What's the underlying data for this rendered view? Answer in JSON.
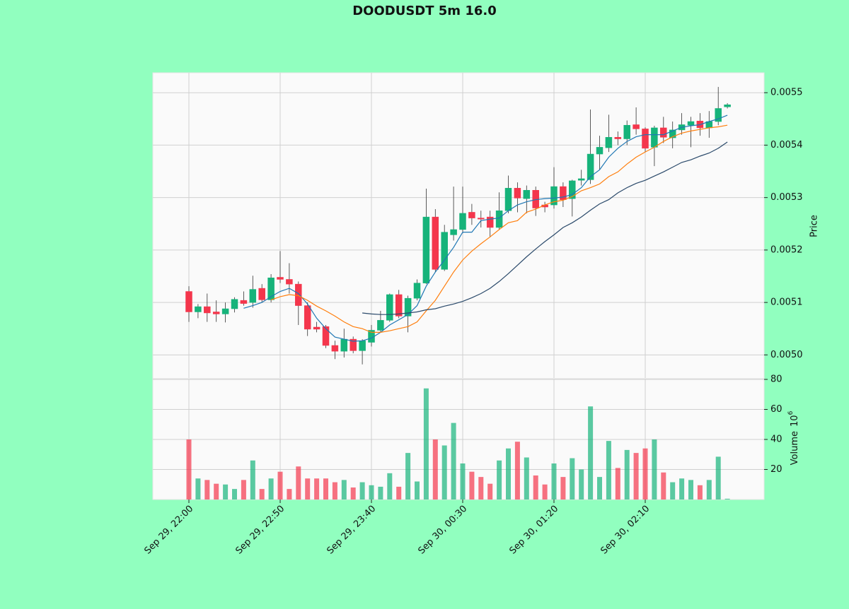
{
  "chart_data": {
    "type": "candlestick",
    "title": "DOODUSDT 5m 16.0",
    "ylabel": "Price",
    "volume_label": "Volume",
    "volume_multiplier": "10",
    "volume_exponent": "6",
    "up_color": "#16b37a",
    "down_color": "#f4364c",
    "grid": true,
    "categories": [
      "Sep 29, 22:00",
      null,
      null,
      null,
      null,
      null,
      null,
      null,
      null,
      null,
      "Sep 29, 22:50",
      null,
      null,
      null,
      null,
      null,
      null,
      null,
      null,
      null,
      "Sep 29, 23:40",
      null,
      null,
      null,
      null,
      null,
      null,
      null,
      null,
      null,
      "Sep 30, 00:30",
      null,
      null,
      null,
      null,
      null,
      null,
      null,
      null,
      null,
      "Sep 30, 01:20",
      null,
      null,
      null,
      null,
      null,
      null,
      null,
      null,
      null,
      "Sep 30, 02:10",
      null,
      null,
      null,
      null,
      null,
      null,
      null,
      null,
      null
    ],
    "open": [
      0.005121,
      0.005082,
      0.005092,
      0.005082,
      0.005078,
      0.005088,
      0.005104,
      0.0051,
      0.005127,
      0.005105,
      0.005148,
      0.005144,
      0.005135,
      0.005094,
      0.005053,
      0.005054,
      0.005018,
      0.005007,
      0.00503,
      0.005008,
      0.005024,
      0.005047,
      0.005066,
      0.005115,
      0.005074,
      0.005108,
      0.005137,
      0.005263,
      0.005163,
      0.005229,
      0.005239,
      0.005272,
      0.005261,
      0.005263,
      0.005243,
      0.005275,
      0.005318,
      0.005298,
      0.005314,
      0.005286,
      0.005286,
      0.005321,
      0.005298,
      0.005333,
      0.005334,
      0.005383,
      0.005395,
      0.005415,
      0.005412,
      0.005439,
      0.005431,
      0.005396,
      0.005433,
      0.005414,
      0.005429,
      0.005438,
      0.005446,
      0.005433,
      0.005445,
      0.005473
    ],
    "high": [
      0.005131,
      0.005097,
      0.005117,
      0.005104,
      0.0051,
      0.00511,
      0.005121,
      0.005151,
      0.005135,
      0.005154,
      0.005198,
      0.005175,
      0.00514,
      0.0051,
      0.005063,
      0.005057,
      0.005027,
      0.00505,
      0.005035,
      0.00503,
      0.005057,
      0.005084,
      0.005117,
      0.005124,
      0.005113,
      0.005144,
      0.005317,
      0.005278,
      0.005248,
      0.005321,
      0.005321,
      0.005288,
      0.005275,
      0.005275,
      0.00531,
      0.005342,
      0.005329,
      0.005323,
      0.005321,
      0.005292,
      0.005358,
      0.005329,
      0.005334,
      0.005353,
      0.005468,
      0.005418,
      0.005458,
      0.005426,
      0.005447,
      0.005472,
      0.005434,
      0.005437,
      0.005454,
      0.005445,
      0.005461,
      0.005454,
      0.005461,
      0.005465,
      0.005511,
      0.00548
    ],
    "low": [
      0.005063,
      0.00507,
      0.005063,
      0.005063,
      0.005062,
      0.005081,
      0.005094,
      0.00509,
      0.0051,
      0.0051,
      0.005137,
      0.005117,
      0.005057,
      0.005036,
      0.005043,
      0.005013,
      0.004992,
      0.004995,
      0.005003,
      0.004982,
      0.005016,
      0.005043,
      0.005063,
      0.00507,
      0.005043,
      0.005104,
      0.005135,
      0.005158,
      0.00516,
      0.005218,
      0.005232,
      0.005248,
      0.005243,
      0.005225,
      0.005239,
      0.00527,
      0.005272,
      0.00527,
      0.005265,
      0.005272,
      0.005279,
      0.005282,
      0.005264,
      0.005323,
      0.005326,
      0.005353,
      0.005387,
      0.0054,
      0.0054,
      0.00542,
      0.005387,
      0.00536,
      0.005404,
      0.005394,
      0.00542,
      0.005396,
      0.005418,
      0.005414,
      0.005438,
      0.00547
    ],
    "close": [
      0.005082,
      0.005092,
      0.00508,
      0.005078,
      0.005088,
      0.005106,
      0.005098,
      0.005125,
      0.005105,
      0.005147,
      0.005144,
      0.005135,
      0.005094,
      0.005049,
      0.005049,
      0.005018,
      0.005007,
      0.00503,
      0.005008,
      0.005027,
      0.005047,
      0.005066,
      0.005115,
      0.005074,
      0.005108,
      0.005137,
      0.005263,
      0.005163,
      0.005234,
      0.005239,
      0.00527,
      0.005261,
      0.005259,
      0.005243,
      0.005275,
      0.005318,
      0.005299,
      0.005314,
      0.00528,
      0.005282,
      0.005321,
      0.005296,
      0.005332,
      0.005336,
      0.005383,
      0.005396,
      0.005415,
      0.005412,
      0.005438,
      0.005431,
      0.005394,
      0.005433,
      0.005415,
      0.005429,
      0.005439,
      0.005445,
      0.005433,
      0.005445,
      0.00547,
      0.005477
    ],
    "volume": [
      40,
      14,
      13,
      10.5,
      10,
      7,
      13,
      26,
      7,
      14,
      18.5,
      7,
      22,
      14,
      14,
      14,
      11.5,
      13,
      8,
      11.5,
      9.5,
      8.5,
      17.5,
      8.5,
      31,
      12,
      74,
      40,
      36,
      51,
      24,
      18.5,
      15,
      10.5,
      26,
      34,
      38.5,
      28,
      16,
      10,
      24,
      15,
      27.5,
      20,
      62,
      15,
      39,
      21,
      33,
      31,
      34,
      40,
      18,
      11.5,
      14,
      13,
      9.5,
      13,
      28.5,
      0.5
    ],
    "moving_averages": [
      {
        "color": "#1f77b4",
        "values": [
          null,
          null,
          null,
          null,
          null,
          null,
          0.005089,
          0.005094,
          0.0051,
          0.005111,
          0.005121,
          0.005127,
          0.005117,
          0.005097,
          0.00507,
          0.00505,
          0.005034,
          0.00503,
          0.005026,
          0.005027,
          0.005032,
          0.005043,
          0.005057,
          0.005067,
          0.005077,
          0.005094,
          0.005131,
          0.005158,
          0.005181,
          0.005205,
          0.005234,
          0.005234,
          0.005256,
          0.005259,
          0.005261,
          0.005275,
          0.005286,
          0.005292,
          0.005296,
          0.005298,
          0.005299,
          0.005301,
          0.005306,
          0.005319,
          0.00534,
          0.005353,
          0.005377,
          0.005394,
          0.005407,
          0.005416,
          0.00542,
          0.00542,
          0.00542,
          0.005427,
          0.005434,
          0.005437,
          0.005439,
          0.005445,
          0.00545,
          0.005457
        ]
      },
      {
        "color": "#ff7f0e",
        "values": [
          null,
          null,
          null,
          null,
          null,
          null,
          null,
          null,
          null,
          0.005105,
          0.005111,
          0.005115,
          0.005113,
          0.005104,
          0.005093,
          0.005084,
          0.005074,
          0.005063,
          0.005054,
          0.00505,
          0.005043,
          0.005043,
          0.005046,
          0.00505,
          0.005054,
          0.005063,
          0.005084,
          0.005104,
          0.005131,
          0.005158,
          0.005181,
          0.005198,
          0.005212,
          0.005225,
          0.005239,
          0.005252,
          0.005256,
          0.005272,
          0.005278,
          0.005286,
          0.005292,
          0.005295,
          0.005302,
          0.005313,
          0.005319,
          0.005326,
          0.00534,
          0.005349,
          0.005364,
          0.005377,
          0.005387,
          0.005396,
          0.005407,
          0.005416,
          0.005423,
          0.005427,
          0.00543,
          0.005433,
          0.005435,
          0.005438
        ]
      },
      {
        "color": "#2b4a6b",
        "values": [
          null,
          null,
          null,
          null,
          null,
          null,
          null,
          null,
          null,
          null,
          null,
          null,
          null,
          null,
          null,
          null,
          null,
          null,
          null,
          0.00508,
          0.005078,
          0.005077,
          0.005077,
          0.005078,
          0.00508,
          0.005082,
          0.005086,
          0.005088,
          0.005093,
          0.005097,
          0.005102,
          0.005109,
          0.005117,
          0.005127,
          0.00514,
          0.005155,
          0.005171,
          0.005187,
          0.005202,
          0.005216,
          0.005229,
          0.005243,
          0.005252,
          0.005263,
          0.005276,
          0.005288,
          0.005296,
          0.005309,
          0.005319,
          0.005327,
          0.005333,
          0.005341,
          0.005349,
          0.005358,
          0.005367,
          0.005372,
          0.005379,
          0.005385,
          0.005394,
          0.005406
        ]
      }
    ],
    "ylim": [
      0.004956,
      0.005538
    ],
    "yticks": [
      {
        "value": 0.005,
        "label": "0.0050"
      },
      0.0051,
      0.0052,
      0.0053,
      0.0054,
      0.0055
    ],
    "volume_ylim": [
      0,
      80
    ],
    "volume_yticks": [
      20,
      40,
      60,
      80
    ]
  }
}
